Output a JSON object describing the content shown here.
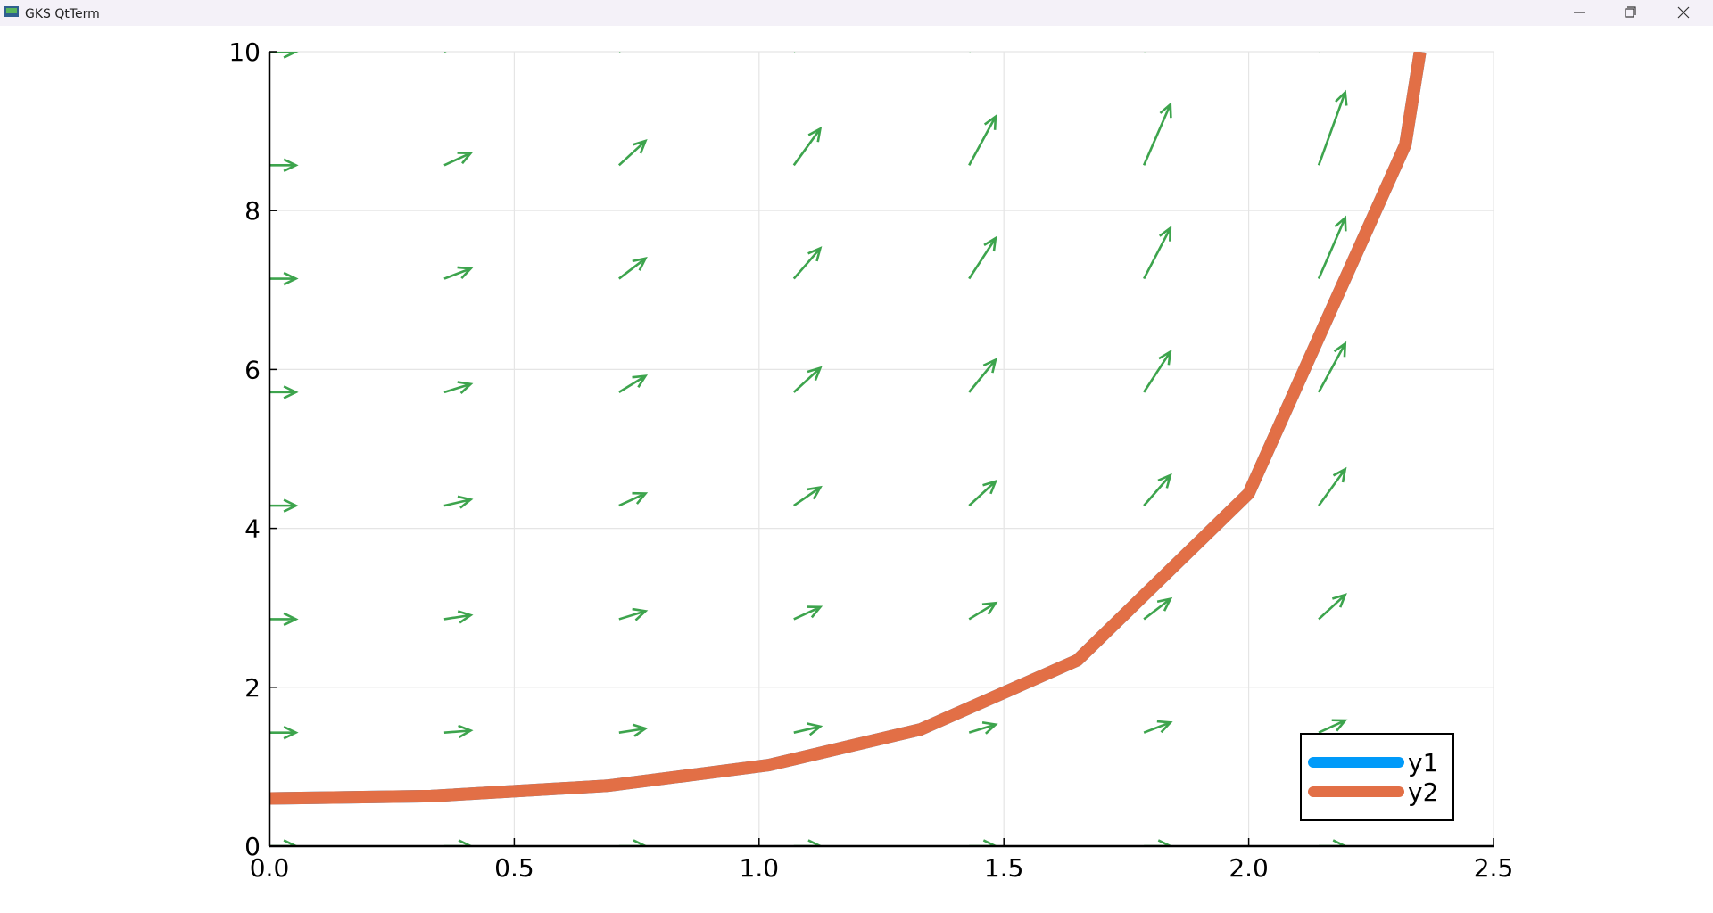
{
  "window": {
    "title": "GKS QtTerm"
  },
  "chart_data": {
    "type": "line",
    "x": [
      0,
      0.33,
      0.69,
      1.02,
      1.33,
      1.65,
      2.0,
      2.32,
      2.35
    ],
    "series": [
      {
        "name": "y1",
        "color": "#009af9",
        "values": [
          0.6,
          0.63,
          0.76,
          1.02,
          1.47,
          2.34,
          4.44,
          8.83,
          10
        ]
      },
      {
        "name": "y2",
        "color": "#e26f46",
        "values": [
          0.6,
          0.63,
          0.76,
          1.02,
          1.47,
          2.34,
          4.44,
          8.83,
          10
        ]
      }
    ],
    "quiver": {
      "color": "#3da44d",
      "x": [
        0,
        0,
        0,
        0,
        0,
        0,
        0,
        0,
        0.357,
        0.357,
        0.357,
        0.357,
        0.357,
        0.357,
        0.357,
        0.357,
        0.714,
        0.714,
        0.714,
        0.714,
        0.714,
        0.714,
        0.714,
        0.714,
        1.071,
        1.071,
        1.071,
        1.071,
        1.071,
        1.071,
        1.071,
        1.071,
        1.429,
        1.429,
        1.429,
        1.429,
        1.429,
        1.429,
        1.429,
        1.429,
        1.786,
        1.786,
        1.786,
        1.786,
        1.786,
        1.786,
        1.786,
        1.786,
        2.143,
        2.143,
        2.143,
        2.143,
        2.143,
        2.143,
        2.143,
        2.143
      ],
      "y": [
        0,
        1.429,
        2.857,
        4.286,
        5.714,
        7.143,
        8.571,
        10,
        0,
        1.429,
        2.857,
        4.286,
        5.714,
        7.143,
        8.571,
        10,
        0,
        1.429,
        2.857,
        4.286,
        5.714,
        7.143,
        8.571,
        10,
        0,
        1.429,
        2.857,
        4.286,
        5.714,
        7.143,
        8.571,
        10,
        0,
        1.429,
        2.857,
        4.286,
        5.714,
        7.143,
        8.571,
        10,
        0,
        1.429,
        2.857,
        4.286,
        5.714,
        7.143,
        8.571,
        10,
        0,
        1.429,
        2.857,
        4.286,
        5.714,
        7.143,
        8.571,
        10
      ],
      "u": [
        0.054,
        0.054,
        0.054,
        0.054,
        0.054,
        0.054,
        0.054,
        0.054,
        0.054,
        0.054,
        0.054,
        0.054,
        0.054,
        0.054,
        0.054,
        0.054,
        0.054,
        0.054,
        0.054,
        0.054,
        0.054,
        0.054,
        0.054,
        0.054,
        0.054,
        0.054,
        0.054,
        0.054,
        0.054,
        0.054,
        0.054,
        0.054,
        0.054,
        0.054,
        0.054,
        0.054,
        0.054,
        0.054,
        0.054,
        0.054,
        0.054,
        0.054,
        0.054,
        0.054,
        0.054,
        0.054,
        0.054,
        0.054,
        0.054,
        0.054,
        0.054,
        0.054,
        0.054,
        0.054,
        0.054,
        0.054
      ],
      "v": [
        0,
        0,
        0,
        0,
        0,
        0,
        0,
        0,
        0,
        0.026,
        0.051,
        0.077,
        0.102,
        0.128,
        0.153,
        0.179,
        0,
        0.051,
        0.102,
        0.153,
        0.204,
        0.255,
        0.306,
        0.357,
        0,
        0.077,
        0.153,
        0.23,
        0.306,
        0.383,
        0.459,
        0.536,
        0,
        0.102,
        0.204,
        0.306,
        0.408,
        0.51,
        0.612,
        0.714,
        0,
        0.128,
        0.255,
        0.383,
        0.51,
        0.638,
        0.765,
        0.893,
        0,
        0.153,
        0.306,
        0.459,
        0.612,
        0.765,
        0.918,
        1.071
      ]
    },
    "xlim": [
      0,
      2.5
    ],
    "xticks": [
      {
        "value": 0,
        "label": "0.0"
      },
      0.5,
      {
        "value": 1,
        "label": "1.0"
      },
      1.5,
      {
        "value": 2,
        "label": "2.0"
      },
      2.5
    ],
    "ylim": [
      0,
      10
    ],
    "yticks": [
      0,
      2,
      4,
      6,
      8,
      10
    ],
    "grid": true,
    "legend": "bottom right"
  }
}
